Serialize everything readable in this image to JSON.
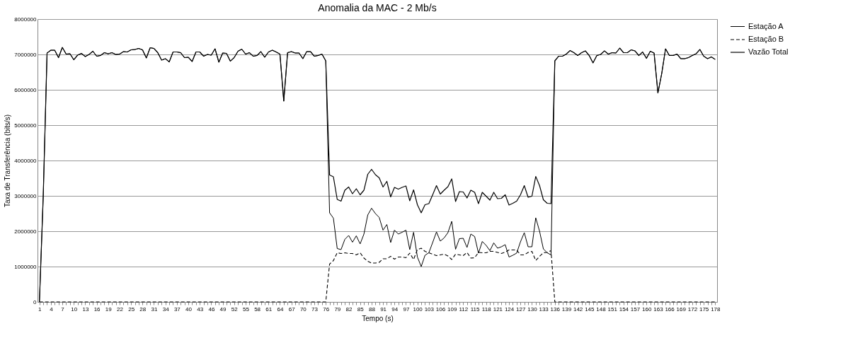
{
  "chart_data": {
    "type": "line",
    "title": "Anomalia da MAC - 2 Mb/s",
    "xlabel": "Tempo (s)",
    "ylabel": "Taxa de Transferência (bits/s)",
    "categories": [
      "1",
      null,
      null,
      "4",
      null,
      null,
      "7",
      null,
      null,
      "10",
      null,
      null,
      "13",
      null,
      null,
      "16",
      null,
      null,
      "19",
      null,
      null,
      "22",
      null,
      null,
      "25",
      null,
      null,
      "28",
      null,
      null,
      "31",
      null,
      null,
      "34",
      null,
      null,
      "37",
      null,
      null,
      "40",
      null,
      null,
      "43",
      null,
      null,
      "46",
      null,
      null,
      "49",
      null,
      null,
      "52",
      null,
      null,
      "55",
      null,
      null,
      "58",
      null,
      null,
      "61",
      null,
      null,
      "64",
      null,
      null,
      "67",
      null,
      null,
      "70",
      null,
      null,
      "73",
      null,
      null,
      "76",
      null,
      null,
      "79",
      null,
      null,
      "82",
      null,
      null,
      "85",
      null,
      null,
      "88",
      null,
      null,
      "91",
      null,
      null,
      "94",
      null,
      null,
      "97",
      null,
      null,
      "100",
      null,
      null,
      "103",
      null,
      null,
      "106",
      null,
      null,
      "109",
      null,
      null,
      "112",
      null,
      null,
      "115",
      null,
      null,
      "118",
      null,
      null,
      "121",
      null,
      null,
      "124",
      null,
      null,
      "127",
      null,
      null,
      "130",
      null,
      null,
      "133",
      null,
      null,
      "136",
      null,
      null,
      "139",
      null,
      null,
      "142",
      null,
      null,
      "145",
      null,
      null,
      "148",
      null,
      null,
      "151",
      null,
      null,
      "154",
      null,
      null,
      "157",
      null,
      null,
      "160",
      null,
      null,
      "163",
      null,
      null,
      "166",
      null,
      null,
      "169",
      null,
      null,
      "172",
      null,
      null,
      "175",
      null,
      null,
      "178"
    ],
    "series": [
      {
        "name": "Estação A",
        "color": "#000000",
        "line_style": "solid",
        "values": [
          0,
          3000000,
          7040000,
          7120000,
          7120000,
          6910000,
          7200000,
          7010000,
          7020000,
          6850000,
          6980000,
          7030000,
          6940000,
          7000000,
          7090000,
          6950000,
          6970000,
          7050000,
          7020000,
          7050000,
          7000000,
          7010000,
          7080000,
          7070000,
          7130000,
          7140000,
          7170000,
          7130000,
          6900000,
          7190000,
          7170000,
          7050000,
          6840000,
          6880000,
          6790000,
          7070000,
          7070000,
          7050000,
          6910000,
          6920000,
          6800000,
          7070000,
          7070000,
          6950000,
          7000000,
          6980000,
          7160000,
          6780000,
          7040000,
          7030000,
          6810000,
          6910000,
          7090000,
          7150000,
          7010000,
          7050000,
          6950000,
          6970000,
          7080000,
          6920000,
          7070000,
          7120000,
          7070000,
          7010000,
          5680000,
          7050000,
          7080000,
          7040000,
          7040000,
          6880000,
          7080000,
          7080000,
          6950000,
          6970000,
          7010000,
          6820000,
          2520000,
          2370000,
          1510000,
          1480000,
          1770000,
          1880000,
          1690000,
          1870000,
          1640000,
          1920000,
          2460000,
          2650000,
          2500000,
          2390000,
          2030000,
          2190000,
          1680000,
          2030000,
          1920000,
          1970000,
          2030000,
          1480000,
          1970000,
          1270000,
          1000000,
          1320000,
          1390000,
          1680000,
          1980000,
          1720000,
          1810000,
          1960000,
          2280000,
          1490000,
          1790000,
          1800000,
          1540000,
          1920000,
          1850000,
          1380000,
          1710000,
          1600000,
          1450000,
          1670000,
          1520000,
          1560000,
          1620000,
          1270000,
          1320000,
          1380000,
          1700000,
          1960000,
          1560000,
          1560000,
          2380000,
          2000000,
          1500000,
          1390000,
          1330000,
          6820000,
          6950000,
          6950000,
          7010000,
          7110000,
          7050000,
          6970000,
          7050000,
          7100000,
          6970000,
          6760000,
          6970000,
          7000000,
          7100000,
          7010000,
          7050000,
          7040000,
          7180000,
          7050000,
          7050000,
          7130000,
          7100000,
          6970000,
          7070000,
          6890000,
          7090000,
          7040000,
          5910000,
          6460000,
          7160000,
          6970000,
          6970000,
          7010000,
          6880000,
          6880000,
          6910000,
          6970000,
          7020000,
          7140000,
          6950000,
          6880000,
          6930000,
          6860000
        ]
      },
      {
        "name": "Estação B",
        "color": "#000000",
        "line_style": "dashed",
        "values": [
          0,
          0,
          0,
          0,
          0,
          0,
          0,
          0,
          0,
          0,
          0,
          0,
          0,
          0,
          0,
          0,
          0,
          0,
          0,
          0,
          0,
          0,
          0,
          0,
          0,
          0,
          0,
          0,
          0,
          0,
          0,
          0,
          0,
          0,
          0,
          0,
          0,
          0,
          0,
          0,
          0,
          0,
          0,
          0,
          0,
          0,
          0,
          0,
          0,
          0,
          0,
          0,
          0,
          0,
          0,
          0,
          0,
          0,
          0,
          0,
          0,
          0,
          0,
          0,
          0,
          0,
          0,
          0,
          0,
          0,
          0,
          0,
          0,
          0,
          0,
          0,
          1070000,
          1170000,
          1390000,
          1370000,
          1390000,
          1370000,
          1370000,
          1330000,
          1390000,
          1240000,
          1150000,
          1100000,
          1100000,
          1120000,
          1220000,
          1220000,
          1290000,
          1210000,
          1270000,
          1270000,
          1250000,
          1380000,
          1200000,
          1480000,
          1520000,
          1430000,
          1390000,
          1350000,
          1310000,
          1330000,
          1350000,
          1300000,
          1200000,
          1350000,
          1330000,
          1310000,
          1400000,
          1240000,
          1250000,
          1400000,
          1390000,
          1390000,
          1430000,
          1430000,
          1400000,
          1370000,
          1410000,
          1470000,
          1470000,
          1470000,
          1330000,
          1330000,
          1400000,
          1430000,
          1170000,
          1290000,
          1390000,
          1400000,
          1450000,
          0,
          0,
          0,
          0,
          0,
          0,
          0,
          0,
          0,
          0,
          0,
          0,
          0,
          0,
          0,
          0,
          0,
          0,
          0,
          0,
          0,
          0,
          0,
          0,
          0,
          0,
          0,
          0,
          0,
          0,
          0,
          0,
          0,
          0,
          0,
          0,
          0,
          0,
          0,
          0,
          0,
          0,
          0
        ]
      },
      {
        "name": "Vazão Total",
        "color": "#000000",
        "line_style": "solid",
        "values": [
          0,
          3000000,
          7040000,
          7120000,
          7120000,
          6910000,
          7200000,
          7010000,
          7020000,
          6850000,
          6980000,
          7030000,
          6940000,
          7000000,
          7090000,
          6950000,
          6970000,
          7050000,
          7020000,
          7050000,
          7000000,
          7010000,
          7080000,
          7070000,
          7130000,
          7140000,
          7170000,
          7130000,
          6900000,
          7190000,
          7170000,
          7050000,
          6840000,
          6880000,
          6790000,
          7070000,
          7070000,
          7050000,
          6910000,
          6920000,
          6800000,
          7070000,
          7070000,
          6950000,
          7000000,
          6980000,
          7160000,
          6780000,
          7040000,
          7030000,
          6810000,
          6910000,
          7090000,
          7150000,
          7010000,
          7050000,
          6950000,
          6970000,
          7080000,
          6920000,
          7070000,
          7120000,
          7070000,
          7010000,
          5680000,
          7050000,
          7080000,
          7040000,
          7040000,
          6880000,
          7080000,
          7080000,
          6950000,
          6970000,
          7010000,
          6820000,
          3590000,
          3540000,
          2900000,
          2850000,
          3160000,
          3250000,
          3060000,
          3200000,
          3030000,
          3160000,
          3610000,
          3750000,
          3600000,
          3510000,
          3250000,
          3410000,
          2970000,
          3240000,
          3190000,
          3240000,
          3280000,
          2860000,
          3170000,
          2750000,
          2520000,
          2750000,
          2780000,
          3030000,
          3290000,
          3050000,
          3160000,
          3260000,
          3480000,
          2840000,
          3120000,
          3110000,
          2940000,
          3160000,
          3100000,
          2780000,
          3100000,
          2990000,
          2880000,
          3100000,
          2920000,
          2930000,
          3030000,
          2740000,
          2790000,
          2850000,
          3030000,
          3290000,
          2960000,
          2990000,
          3550000,
          3290000,
          2890000,
          2790000,
          2780000,
          6820000,
          6950000,
          6950000,
          7010000,
          7110000,
          7050000,
          6970000,
          7050000,
          7100000,
          6970000,
          6760000,
          6970000,
          7000000,
          7100000,
          7010000,
          7050000,
          7040000,
          7180000,
          7050000,
          7050000,
          7130000,
          7100000,
          6970000,
          7070000,
          6890000,
          7090000,
          7040000,
          5910000,
          6460000,
          7160000,
          6970000,
          6970000,
          7010000,
          6880000,
          6880000,
          6910000,
          6970000,
          7020000,
          7140000,
          6950000,
          6880000,
          6930000,
          6860000
        ]
      }
    ],
    "ylim": [
      0,
      8000000
    ],
    "yticks": [
      0,
      1000000,
      2000000,
      3000000,
      4000000,
      5000000,
      6000000,
      7000000,
      8000000
    ],
    "grid": "y",
    "legend": "right",
    "marker": "none"
  }
}
